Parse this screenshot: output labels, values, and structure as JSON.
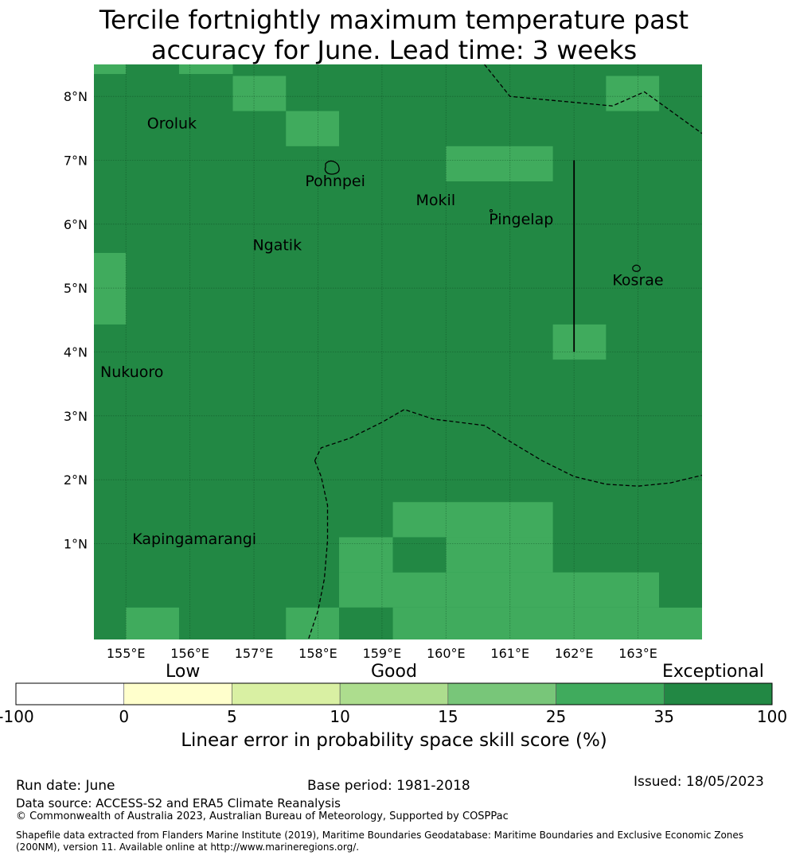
{
  "title": "Tercile fortnightly maximum temperature past accuracy for June. Lead time: 3 weeks",
  "title_lines": [
    "Tercile fortnightly maximum temperature past",
    "accuracy for June. Lead time: 3 weeks"
  ],
  "map": {
    "lon_range": [
      154.5,
      164.0
    ],
    "lat_range": [
      -0.5,
      8.5
    ],
    "x_ticks": [
      {
        "value": 155,
        "label": "155°E"
      },
      {
        "value": 156,
        "label": "156°E"
      },
      {
        "value": 157,
        "label": "157°E"
      },
      {
        "value": 158,
        "label": "158°E"
      },
      {
        "value": 159,
        "label": "159°E"
      },
      {
        "value": 160,
        "label": "160°E"
      },
      {
        "value": 161,
        "label": "161°E"
      },
      {
        "value": 162,
        "label": "162°E"
      },
      {
        "value": 163,
        "label": "163°E"
      }
    ],
    "y_ticks": [
      {
        "value": 1,
        "label": "1°N"
      },
      {
        "value": 2,
        "label": "2°N"
      },
      {
        "value": 3,
        "label": "3°N"
      },
      {
        "value": 4,
        "label": "4°N"
      },
      {
        "value": 5,
        "label": "5°N"
      },
      {
        "value": 6,
        "label": "6°N"
      },
      {
        "value": 7,
        "label": "7°N"
      },
      {
        "value": 8,
        "label": "8°N"
      }
    ],
    "background_color": "#228844",
    "cell_colors": {
      "class_25_35": "#40ab5d",
      "class_35_100": "#228844"
    },
    "cells_25_35": [
      {
        "lon": [
          154.5,
          155.0
        ],
        "lat": [
          8.35,
          8.5
        ]
      },
      {
        "lon": [
          155.83,
          156.67
        ],
        "lat": [
          8.35,
          8.5
        ]
      },
      {
        "lon": [
          156.67,
          157.5
        ],
        "lat": [
          7.77,
          8.32
        ]
      },
      {
        "lon": [
          157.5,
          158.33
        ],
        "lat": [
          7.22,
          7.77
        ]
      },
      {
        "lon": [
          160.0,
          161.67
        ],
        "lat": [
          6.67,
          7.22
        ]
      },
      {
        "lon": [
          162.5,
          163.33
        ],
        "lat": [
          7.77,
          8.32
        ]
      },
      {
        "lon": [
          154.5,
          155.0
        ],
        "lat": [
          4.43,
          5.55
        ]
      },
      {
        "lon": [
          161.67,
          162.5
        ],
        "lat": [
          3.88,
          4.43
        ]
      },
      {
        "lon": [
          159.17,
          161.67
        ],
        "lat": [
          1.1,
          1.65
        ]
      },
      {
        "lon": [
          158.33,
          159.17
        ],
        "lat": [
          0.55,
          1.1
        ]
      },
      {
        "lon": [
          160.0,
          161.67
        ],
        "lat": [
          0.55,
          1.1
        ]
      },
      {
        "lon": [
          158.33,
          163.33
        ],
        "lat": [
          0.0,
          0.55
        ]
      },
      {
        "lon": [
          158.33,
          164.0
        ],
        "lat": [
          -0.5,
          0.0
        ]
      },
      {
        "lon": [
          155.0,
          155.83
        ],
        "lat": [
          -0.5,
          0.0
        ]
      },
      {
        "lon": [
          157.5,
          158.33
        ],
        "lat": [
          -0.5,
          0.0
        ]
      }
    ],
    "cells_35_100": [
      {
        "lon": [
          159.17,
          160.0
        ],
        "lat": [
          0.55,
          1.1
        ]
      },
      {
        "lon": [
          158.33,
          159.17
        ],
        "lat": [
          -0.5,
          0.0
        ]
      },
      {
        "lon": [
          163.33,
          164.0
        ],
        "lat": [
          0.0,
          0.55
        ]
      }
    ],
    "places": [
      {
        "name": "Oroluk",
        "lon": 155.33,
        "lat": 7.57
      },
      {
        "name": "Pohnpei",
        "lon": 157.8,
        "lat": 6.67
      },
      {
        "name": "Mokil",
        "lon": 159.53,
        "lat": 6.37
      },
      {
        "name": "Pingelap",
        "lon": 160.67,
        "lat": 6.07
      },
      {
        "name": "Ngatik",
        "lon": 156.98,
        "lat": 5.67
      },
      {
        "name": "Kosrae",
        "lon": 162.6,
        "lat": 5.12
      },
      {
        "name": "Nukuoro",
        "lon": 154.6,
        "lat": 3.68
      },
      {
        "name": "Kapingamarangi",
        "lon": 155.1,
        "lat": 1.07
      }
    ],
    "boundaries": [
      {
        "style": "dashed",
        "points": [
          [
            160.6,
            8.5
          ],
          [
            161.0,
            8.0
          ],
          [
            162.6,
            7.85
          ],
          [
            163.1,
            8.07
          ],
          [
            164.0,
            7.42
          ]
        ]
      },
      {
        "style": "dashed",
        "points": [
          [
            157.95,
            2.3
          ],
          [
            158.05,
            2.5
          ],
          [
            158.5,
            2.65
          ],
          [
            159.0,
            2.9
          ],
          [
            159.35,
            3.1
          ],
          [
            159.8,
            2.95
          ],
          [
            160.6,
            2.85
          ],
          [
            161.0,
            2.6
          ],
          [
            161.5,
            2.3
          ],
          [
            162.0,
            2.05
          ],
          [
            162.5,
            1.93
          ],
          [
            163.0,
            1.9
          ],
          [
            163.5,
            1.95
          ],
          [
            164.0,
            2.07
          ]
        ]
      },
      {
        "style": "dashed",
        "points": [
          [
            157.95,
            2.3
          ],
          [
            158.05,
            2.05
          ],
          [
            158.15,
            1.6
          ],
          [
            158.15,
            1.05
          ],
          [
            158.1,
            0.45
          ],
          [
            158.0,
            -0.05
          ],
          [
            157.85,
            -0.5
          ]
        ]
      },
      {
        "style": "solid",
        "points": [
          [
            162.0,
            7.0
          ],
          [
            162.0,
            4.0
          ]
        ]
      }
    ]
  },
  "colorbar": {
    "category_labels": [
      "Low",
      "Good",
      "Exceptional"
    ],
    "ticks": [
      "-100",
      "0",
      "5",
      "10",
      "15",
      "25",
      "35",
      "100"
    ],
    "colors": [
      "#ffffff",
      "#ffffcc",
      "#d9f0a3",
      "#addd8e",
      "#78c679",
      "#40ab5d",
      "#228844"
    ],
    "title": "Linear error in probability space skill score (%)"
  },
  "footer": {
    "run_date": "Run date: June",
    "base_period": "Base period: 1981-2018",
    "issued": "Issued: 18/05/2023",
    "data_source": "Data source: ACCESS-S2 and ERA5 Climate Reanalysis",
    "copyright": "© Commonwealth of Australia 2023, Australian Bureau of Meteorology, Supported by COSPPac",
    "shapefile": "Shapefile data extracted from Flanders Marine Institute (2019), Maritime Boundaries Geodatabase: Maritime Boundaries and Exclusive Economic Zones (200NM), version 11. Available online at http://www.marineregions.org/."
  }
}
